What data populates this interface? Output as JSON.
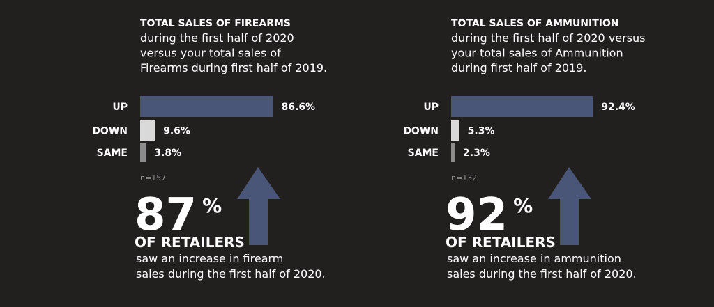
{
  "chart_data": [
    {
      "type": "bar",
      "orientation": "horizontal",
      "title": "TOTAL SALES OF FIREARMS",
      "subtitle": [
        "during the first half of 2020",
        "versus your total sales of",
        "Firearms during first half of 2019."
      ],
      "categories": [
        "UP",
        "DOWN",
        "SAME"
      ],
      "values": [
        86.6,
        9.6,
        3.8
      ],
      "value_labels": [
        "86.6%",
        "9.6%",
        "3.8%"
      ],
      "colors": [
        "#4a5677",
        "#d9d9d9",
        "#8c8c8c"
      ],
      "note": "n=157",
      "highlight": {
        "value": "87",
        "unit": "%",
        "label": "OF RETAILERS",
        "text": [
          "saw an increase in firearm",
          "sales during the first half of 2020."
        ]
      }
    },
    {
      "type": "bar",
      "orientation": "horizontal",
      "title": "TOTAL SALES OF AMMUNITION",
      "subtitle": [
        "during the first half of 2020 versus",
        "your total sales of Ammunition",
        "during first half of 2019."
      ],
      "categories": [
        "UP",
        "DOWN",
        "SAME"
      ],
      "values": [
        92.4,
        5.3,
        2.3
      ],
      "value_labels": [
        "92.4%",
        "5.3%",
        "2.3%"
      ],
      "colors": [
        "#4a5677",
        "#d9d9d9",
        "#8c8c8c"
      ],
      "note": "n=132",
      "highlight": {
        "value": "92",
        "unit": "%",
        "label": "OF RETAILERS",
        "text": [
          "saw an increase in ammunition",
          "sales during the first half of 2020."
        ]
      }
    }
  ]
}
